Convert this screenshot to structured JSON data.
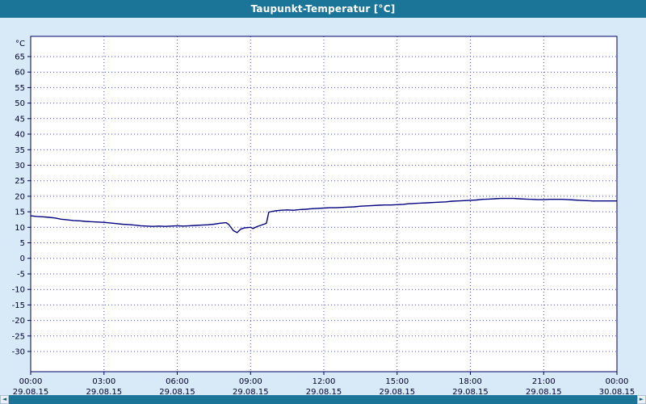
{
  "title": "Taupunkt-Temperatur [°C]",
  "colors": {
    "titlebar": "#1b7599",
    "background": "#d8e9f7",
    "plot_border": "#000066",
    "grid": "#5050dd",
    "line": "#000080",
    "axis_text": "#00002a",
    "scrollbar": "#1b7599"
  },
  "scrollbar": {
    "left_arrow": "◄",
    "right_arrow": "►"
  },
  "chart_data": {
    "type": "line",
    "title": "Taupunkt-Temperatur [°C]",
    "ylabel": "°C",
    "xlabel": "",
    "grid": true,
    "legend": "none",
    "x_range": [
      0,
      24
    ],
    "y_domain": [
      -36.5,
      71.5
    ],
    "yticks": [
      65,
      60,
      55,
      50,
      45,
      40,
      35,
      30,
      25,
      20,
      15,
      10,
      5,
      0,
      -5,
      -10,
      -15,
      -20,
      -25,
      -30
    ],
    "xticks": [
      {
        "h": 0,
        "time": "00:00",
        "date": "29.08.15"
      },
      {
        "h": 3,
        "time": "03:00",
        "date": "29.08.15"
      },
      {
        "h": 6,
        "time": "06:00",
        "date": "29.08.15"
      },
      {
        "h": 9,
        "time": "09:00",
        "date": "29.08.15"
      },
      {
        "h": 12,
        "time": "12:00",
        "date": "29.08.15"
      },
      {
        "h": 15,
        "time": "15:00",
        "date": "29.08.15"
      },
      {
        "h": 18,
        "time": "18:00",
        "date": "29.08.15"
      },
      {
        "h": 21,
        "time": "21:00",
        "date": "29.08.15"
      },
      {
        "h": 24,
        "time": "00:00",
        "date": "30.08.15"
      }
    ],
    "series": [
      {
        "name": "Taupunkt-Temperatur",
        "x": [
          0,
          0.25,
          0.5,
          0.75,
          1,
          1.25,
          1.5,
          1.75,
          2,
          2.25,
          2.5,
          2.75,
          3,
          3.25,
          3.5,
          3.75,
          4,
          4.25,
          4.5,
          4.75,
          5,
          5.25,
          5.5,
          5.75,
          6,
          6.25,
          6.5,
          6.75,
          7,
          7.25,
          7.5,
          7.75,
          8,
          8.1,
          8.3,
          8.45,
          8.6,
          8.75,
          9,
          9.1,
          9.25,
          9.4,
          9.55,
          9.65,
          9.75,
          10,
          10.25,
          10.5,
          10.75,
          11,
          11.25,
          11.5,
          11.75,
          12,
          12.25,
          12.5,
          12.75,
          13,
          13.25,
          13.5,
          13.75,
          14,
          14.25,
          14.5,
          14.75,
          15,
          15.25,
          15.5,
          15.75,
          16,
          16.25,
          16.5,
          16.75,
          17,
          17.25,
          17.5,
          17.75,
          18,
          18.25,
          18.5,
          18.75,
          19,
          19.25,
          19.5,
          19.75,
          20,
          20.25,
          20.5,
          20.75,
          21,
          21.25,
          21.5,
          21.75,
          22,
          22.25,
          22.5,
          22.75,
          23,
          23.25,
          23.5,
          23.75,
          24
        ],
        "y": [
          13.7,
          13.5,
          13.4,
          13.2,
          13.0,
          12.6,
          12.4,
          12.2,
          12.1,
          11.9,
          11.8,
          11.7,
          11.6,
          11.4,
          11.2,
          11.0,
          10.9,
          10.7,
          10.5,
          10.4,
          10.3,
          10.4,
          10.3,
          10.4,
          10.5,
          10.4,
          10.5,
          10.6,
          10.7,
          10.8,
          11.0,
          11.3,
          11.5,
          11.0,
          8.9,
          8.3,
          9.4,
          9.8,
          10.0,
          9.6,
          10.2,
          10.6,
          11.0,
          11.3,
          14.9,
          15.3,
          15.5,
          15.6,
          15.5,
          15.7,
          15.8,
          16.0,
          16.1,
          16.2,
          16.3,
          16.3,
          16.4,
          16.5,
          16.6,
          16.8,
          16.9,
          17.0,
          17.1,
          17.2,
          17.2,
          17.3,
          17.4,
          17.6,
          17.7,
          17.8,
          17.9,
          18.0,
          18.1,
          18.2,
          18.4,
          18.5,
          18.6,
          18.7,
          18.8,
          19.0,
          19.1,
          19.2,
          19.3,
          19.3,
          19.3,
          19.2,
          19.1,
          19.0,
          18.9,
          18.9,
          19.0,
          19.0,
          19.0,
          18.9,
          18.8,
          18.7,
          18.6,
          18.5,
          18.5,
          18.5,
          18.5,
          18.5
        ]
      }
    ]
  }
}
